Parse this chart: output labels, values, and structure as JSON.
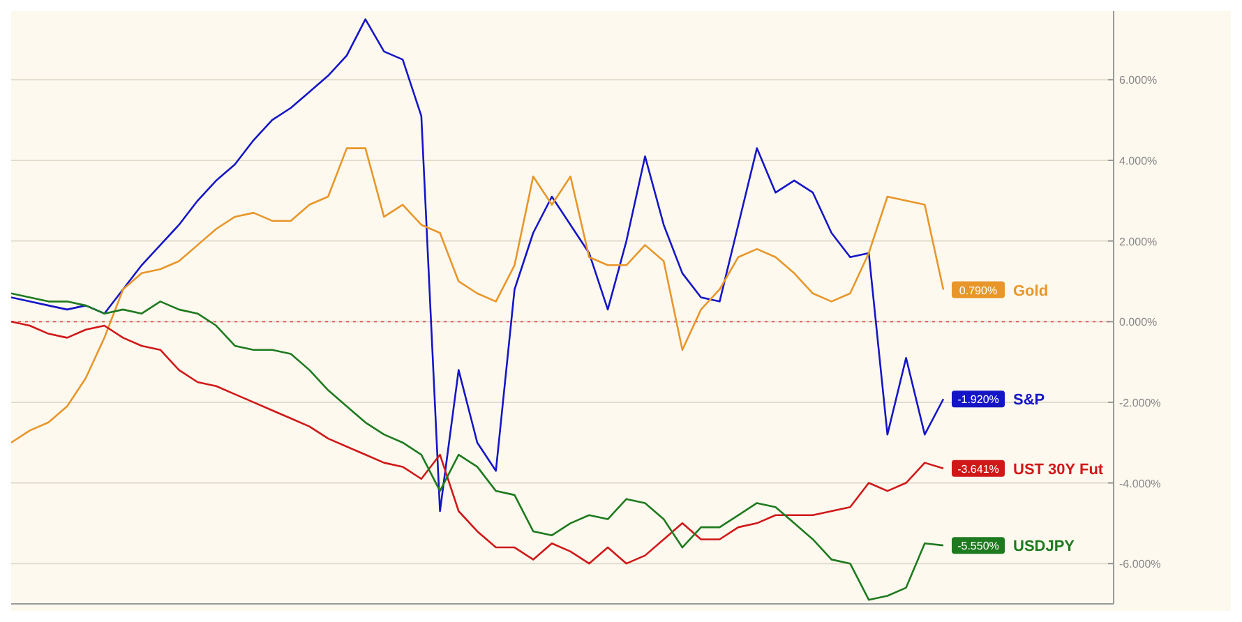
{
  "chart_data": {
    "type": "line",
    "ylim": [
      -7,
      7.7
    ],
    "categories": [
      null,
      null,
      null,
      null,
      null,
      null,
      null,
      null,
      null,
      null,
      null,
      null,
      null,
      null,
      null,
      null,
      null,
      null,
      null,
      null,
      null,
      null,
      null,
      null,
      null,
      null,
      null,
      null,
      null,
      null,
      null,
      null,
      null,
      null,
      null,
      null,
      null,
      null,
      null,
      null,
      null,
      null,
      null,
      null,
      null,
      null,
      null,
      null,
      null,
      null,
      null
    ],
    "yticks": [
      {
        "value": 6,
        "label": "6.000%"
      },
      {
        "value": 4,
        "label": "4.000%"
      },
      {
        "value": 2,
        "label": "2.000%"
      },
      {
        "value": 0,
        "label": "0.000%"
      },
      {
        "value": -2,
        "label": "-2.000%"
      },
      {
        "value": -4,
        "label": "-4.000%"
      },
      {
        "value": -6,
        "label": "-6.000%"
      }
    ],
    "tick_labels": "y",
    "grid": "y",
    "legend": "right",
    "marker": "none",
    "line_style": "solid",
    "ref_lines": [
      {
        "axis": "y",
        "value": 0,
        "color": "#e06060",
        "line_style": "dotted"
      }
    ],
    "series": [
      {
        "name": "S&P",
        "color": "#1515c8",
        "values": [
          0.6,
          0.5,
          0.4,
          0.3,
          0.4,
          0.2,
          0.8,
          1.4,
          1.9,
          2.4,
          3.0,
          3.5,
          3.9,
          4.5,
          5.0,
          5.3,
          5.7,
          6.1,
          6.6,
          7.5,
          6.7,
          6.5,
          5.1,
          -4.7,
          -1.2,
          -3.0,
          -3.7,
          0.8,
          2.2,
          3.1,
          2.4,
          1.7,
          0.3,
          2.0,
          4.1,
          2.4,
          1.2,
          0.6,
          0.5,
          2.4,
          4.3,
          3.2,
          3.5,
          3.2,
          2.2,
          1.6,
          1.7,
          -2.8,
          -0.9,
          -2.8,
          -1.92
        ],
        "value_labels": [
          null,
          null,
          null,
          null,
          null,
          null,
          null,
          null,
          null,
          null,
          null,
          null,
          null,
          null,
          null,
          null,
          null,
          null,
          null,
          null,
          null,
          null,
          null,
          null,
          null,
          null,
          null,
          null,
          null,
          null,
          null,
          null,
          null,
          null,
          null,
          null,
          null,
          null,
          null,
          null,
          null,
          null,
          null,
          null,
          null,
          null,
          null,
          null,
          null,
          null,
          "-1.920%"
        ]
      },
      {
        "name": "Gold",
        "color": "#e8962a",
        "values": [
          -3.0,
          -2.7,
          -2.5,
          -2.1,
          -1.4,
          -0.4,
          0.8,
          1.2,
          1.3,
          1.5,
          1.9,
          2.3,
          2.6,
          2.7,
          2.5,
          2.5,
          2.9,
          3.1,
          4.3,
          4.3,
          2.6,
          2.9,
          2.4,
          2.2,
          1.0,
          0.7,
          0.5,
          1.4,
          3.6,
          2.9,
          3.6,
          1.6,
          1.4,
          1.4,
          1.9,
          1.5,
          -0.7,
          0.3,
          0.8,
          1.6,
          1.8,
          1.6,
          1.2,
          0.7,
          0.5,
          0.7,
          1.7,
          3.1,
          3.0,
          2.9,
          0.79
        ],
        "value_labels": [
          null,
          null,
          null,
          null,
          null,
          null,
          null,
          null,
          null,
          null,
          null,
          null,
          null,
          null,
          null,
          null,
          null,
          null,
          null,
          null,
          null,
          null,
          null,
          null,
          null,
          null,
          null,
          null,
          null,
          null,
          null,
          null,
          null,
          null,
          null,
          null,
          null,
          null,
          null,
          null,
          null,
          null,
          null,
          null,
          null,
          null,
          null,
          null,
          null,
          null,
          "0.790%"
        ]
      },
      {
        "name": "UST 30Y Fut",
        "color": "#d01818",
        "values": [
          0.0,
          -0.1,
          -0.3,
          -0.4,
          -0.2,
          -0.1,
          -0.4,
          -0.6,
          -0.7,
          -1.2,
          -1.5,
          -1.6,
          -1.8,
          -2.0,
          -2.2,
          -2.4,
          -2.6,
          -2.9,
          -3.1,
          -3.3,
          -3.5,
          -3.6,
          -3.9,
          -3.3,
          -4.7,
          -5.2,
          -5.6,
          -5.6,
          -5.9,
          -5.5,
          -5.7,
          -6.0,
          -5.6,
          -6.0,
          -5.8,
          -5.4,
          -5.0,
          -5.4,
          -5.4,
          -5.1,
          -5.0,
          -4.8,
          -4.8,
          -4.8,
          -4.7,
          -4.6,
          -4.0,
          -4.2,
          -4.0,
          -3.5,
          -3.641
        ],
        "value_labels": [
          null,
          null,
          null,
          null,
          null,
          null,
          null,
          null,
          null,
          null,
          null,
          null,
          null,
          null,
          null,
          null,
          null,
          null,
          null,
          null,
          null,
          null,
          null,
          null,
          null,
          null,
          null,
          null,
          null,
          null,
          null,
          null,
          null,
          null,
          null,
          null,
          null,
          null,
          null,
          null,
          null,
          null,
          null,
          null,
          null,
          null,
          null,
          null,
          null,
          null,
          "-3.641%"
        ]
      },
      {
        "name": "USDJPY",
        "color": "#1e7a1e",
        "values": [
          0.7,
          0.6,
          0.5,
          0.5,
          0.4,
          0.2,
          0.3,
          0.2,
          0.5,
          0.3,
          0.2,
          -0.1,
          -0.6,
          -0.7,
          -0.7,
          -0.8,
          -1.2,
          -1.7,
          -2.1,
          -2.5,
          -2.8,
          -3.0,
          -3.3,
          -4.2,
          -3.3,
          -3.6,
          -4.2,
          -4.3,
          -5.2,
          -5.3,
          -5.0,
          -4.8,
          -4.9,
          -4.4,
          -4.5,
          -4.9,
          -5.6,
          -5.1,
          -5.1,
          -4.8,
          -4.5,
          -4.6,
          -5.0,
          -5.4,
          -5.9,
          -6.0,
          -6.9,
          -6.8,
          -6.6,
          -5.5,
          -5.55
        ],
        "value_labels": [
          null,
          null,
          null,
          null,
          null,
          null,
          null,
          null,
          null,
          null,
          null,
          null,
          null,
          null,
          null,
          null,
          null,
          null,
          null,
          null,
          null,
          null,
          null,
          null,
          null,
          null,
          null,
          null,
          null,
          null,
          null,
          null,
          null,
          null,
          null,
          null,
          null,
          null,
          null,
          null,
          null,
          null,
          null,
          null,
          null,
          null,
          null,
          null,
          null,
          null,
          "-5.550%"
        ]
      }
    ]
  }
}
